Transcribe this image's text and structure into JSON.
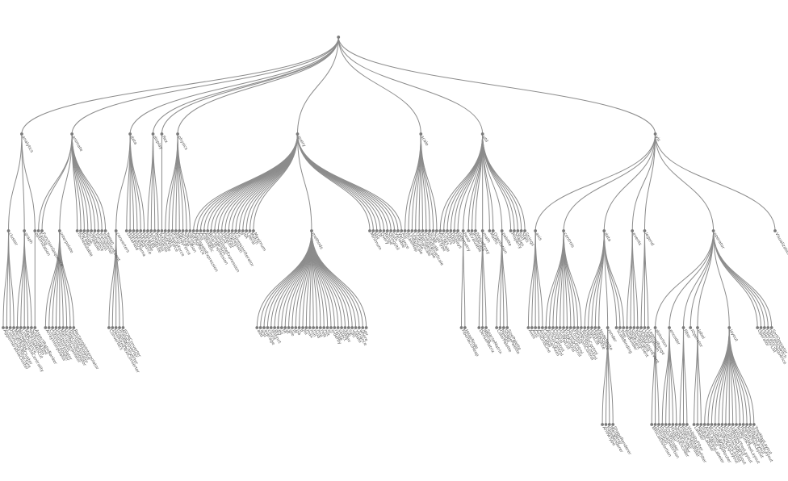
{
  "colors": {
    "link": "#8c8c8c",
    "node": "#7a7a7a",
    "text": "#555555"
  },
  "tree": {
    "name": "",
    "children": [
      {
        "name": "analytics",
        "children": [
          {
            "name": "cluster",
            "children": [
              {
                "name": "AgglomerativeCluster"
              },
              {
                "name": "CommunityStructure"
              },
              {
                "name": "HierarchicalCluster"
              },
              {
                "name": "MergeEdge"
              }
            ]
          },
          {
            "name": "graph",
            "children": [
              {
                "name": "BetweennessCentrality"
              },
              {
                "name": "LinkDistance"
              },
              {
                "name": "MaxFlowMinCut"
              },
              {
                "name": "ShortestPaths"
              },
              {
                "name": "SpanningTree"
              }
            ]
          },
          {
            "name": "optimization",
            "children": [
              {
                "name": "AspectRatioBanker"
              }
            ]
          }
        ]
      },
      {
        "name": "animate",
        "children": [
          {
            "name": "Easing"
          },
          {
            "name": "FunctionSequence"
          },
          {
            "name": "interpolate",
            "children": [
              {
                "name": "ArrayInterpolator"
              },
              {
                "name": "ColorInterpolator"
              },
              {
                "name": "DateInterpolator"
              },
              {
                "name": "Interpolator"
              },
              {
                "name": "MatrixInterpolator"
              },
              {
                "name": "NumberInterpolator"
              },
              {
                "name": "ObjectInterpolator"
              },
              {
                "name": "PointInterpolator"
              },
              {
                "name": "RectangleInterpolator"
              }
            ]
          },
          {
            "name": "ISchedulable"
          },
          {
            "name": "Parallel"
          },
          {
            "name": "Pause"
          },
          {
            "name": "Scheduler"
          },
          {
            "name": "Sequence"
          },
          {
            "name": "Transition"
          },
          {
            "name": "Transitioner"
          },
          {
            "name": "TransitionEvent"
          },
          {
            "name": "Tween"
          }
        ]
      },
      {
        "name": "data",
        "children": [
          {
            "name": "converters",
            "children": [
              {
                "name": "Converters"
              },
              {
                "name": "DelimitedTextConverter"
              },
              {
                "name": "GraphMLConverter"
              },
              {
                "name": "IDataConverter"
              },
              {
                "name": "JSONConverter"
              }
            ]
          },
          {
            "name": "DataField"
          },
          {
            "name": "DataSchema"
          },
          {
            "name": "DataSet"
          },
          {
            "name": "DataSource"
          },
          {
            "name": "DataTable"
          },
          {
            "name": "DataUtil"
          }
        ]
      },
      {
        "name": "display",
        "children": [
          {
            "name": "DirtySprite"
          },
          {
            "name": "LineSprite"
          },
          {
            "name": "RectSprite"
          },
          {
            "name": "TextSprite"
          }
        ]
      },
      {
        "name": "flex",
        "children": [
          {
            "name": "FlareVis"
          }
        ]
      },
      {
        "name": "physics",
        "children": [
          {
            "name": "DragForce"
          },
          {
            "name": "GravityForce"
          },
          {
            "name": "IForce"
          },
          {
            "name": "NBodyForce"
          },
          {
            "name": "Particle"
          },
          {
            "name": "Simulation"
          },
          {
            "name": "Spring"
          },
          {
            "name": "SpringForce"
          }
        ]
      },
      {
        "name": "query",
        "children": [
          {
            "name": "AggregateExpression"
          },
          {
            "name": "And"
          },
          {
            "name": "Arithmetic"
          },
          {
            "name": "Average"
          },
          {
            "name": "BinaryExpression"
          },
          {
            "name": "Comparison"
          },
          {
            "name": "CompositeExpression"
          },
          {
            "name": "Count"
          },
          {
            "name": "DateUtil"
          },
          {
            "name": "Distinct"
          },
          {
            "name": "Expression"
          },
          {
            "name": "ExpressionIterator"
          },
          {
            "name": "Fn"
          },
          {
            "name": "If"
          },
          {
            "name": "IsA"
          },
          {
            "name": "Literal"
          },
          {
            "name": "Match"
          },
          {
            "name": "Maximum"
          },
          {
            "name": "methods",
            "children": [
              {
                "name": "add"
              },
              {
                "name": "and"
              },
              {
                "name": "average"
              },
              {
                "name": "count"
              },
              {
                "name": "distinct"
              },
              {
                "name": "div"
              },
              {
                "name": "eq"
              },
              {
                "name": "fn"
              },
              {
                "name": "gt"
              },
              {
                "name": "gte"
              },
              {
                "name": "iff"
              },
              {
                "name": "isa"
              },
              {
                "name": "lt"
              },
              {
                "name": "lte"
              },
              {
                "name": "max"
              },
              {
                "name": "min"
              },
              {
                "name": "mod"
              },
              {
                "name": "mul"
              },
              {
                "name": "neq"
              },
              {
                "name": "not"
              },
              {
                "name": "or"
              },
              {
                "name": "orderby"
              },
              {
                "name": "range"
              },
              {
                "name": "select"
              },
              {
                "name": "stddev"
              },
              {
                "name": "sub"
              },
              {
                "name": "sum"
              },
              {
                "name": "update"
              },
              {
                "name": "variance"
              },
              {
                "name": "where"
              },
              {
                "name": "xor"
              },
              {
                "name": "_"
              }
            ]
          },
          {
            "name": "Minimum"
          },
          {
            "name": "Not"
          },
          {
            "name": "Or"
          },
          {
            "name": "Query"
          },
          {
            "name": "Range"
          },
          {
            "name": "StringUtil"
          },
          {
            "name": "Sum"
          },
          {
            "name": "Variable"
          },
          {
            "name": "Variance"
          },
          {
            "name": "Xor"
          }
        ]
      },
      {
        "name": "scale",
        "children": [
          {
            "name": "IScaleMap"
          },
          {
            "name": "LinearScale"
          },
          {
            "name": "LogScale"
          },
          {
            "name": "OrdinalScale"
          },
          {
            "name": "QuantileScale"
          },
          {
            "name": "QuantitativeScale"
          },
          {
            "name": "RootScale"
          },
          {
            "name": "Scale"
          },
          {
            "name": "ScaleType"
          },
          {
            "name": "TimeScale"
          }
        ]
      },
      {
        "name": "util",
        "children": [
          {
            "name": "Arrays"
          },
          {
            "name": "Colors"
          },
          {
            "name": "Dates"
          },
          {
            "name": "Displays"
          },
          {
            "name": "Filter"
          },
          {
            "name": "Geometry"
          },
          {
            "name": "heap",
            "children": [
              {
                "name": "FibonacciHeap"
              },
              {
                "name": "HeapNode"
              }
            ]
          },
          {
            "name": "IEvaluable"
          },
          {
            "name": "IPredicate"
          },
          {
            "name": "IValueProxy"
          },
          {
            "name": "math",
            "children": [
              {
                "name": "DenseMatrix"
              },
              {
                "name": "IMatrix"
              },
              {
                "name": "SparseMatrix"
              }
            ]
          },
          {
            "name": "Maths"
          },
          {
            "name": "Orientation"
          },
          {
            "name": "palette",
            "children": [
              {
                "name": "ColorPalette"
              },
              {
                "name": "Palette"
              },
              {
                "name": "ShapePalette"
              },
              {
                "name": "SizePalette"
              }
            ]
          },
          {
            "name": "Property"
          },
          {
            "name": "Shapes"
          },
          {
            "name": "Sort"
          },
          {
            "name": "Stats"
          },
          {
            "name": "Strings"
          }
        ]
      },
      {
        "name": "vis",
        "children": [
          {
            "name": "axis",
            "children": [
              {
                "name": "Axes"
              },
              {
                "name": "Axis"
              },
              {
                "name": "AxisGridLine"
              },
              {
                "name": "AxisLabel"
              },
              {
                "name": "CartesianAxes"
              }
            ]
          },
          {
            "name": "controls",
            "children": [
              {
                "name": "AnchorControl"
              },
              {
                "name": "ClickControl"
              },
              {
                "name": "Control"
              },
              {
                "name": "ControlList"
              },
              {
                "name": "DragControl"
              },
              {
                "name": "ExpandControl"
              },
              {
                "name": "HoverControl"
              },
              {
                "name": "IControl"
              },
              {
                "name": "PanZoomControl"
              },
              {
                "name": "SelectionControl"
              },
              {
                "name": "TooltipControl"
              }
            ]
          },
          {
            "name": "data",
            "children": [
              {
                "name": "Data"
              },
              {
                "name": "DataList"
              },
              {
                "name": "DataSprite"
              },
              {
                "name": "EdgeSprite"
              },
              {
                "name": "NodeSprite"
              },
              {
                "name": "render",
                "children": [
                  {
                    "name": "ArrowType"
                  },
                  {
                    "name": "EdgeRenderer"
                  },
                  {
                    "name": "IRenderer"
                  },
                  {
                    "name": "ShapeRenderer"
                  }
                ]
              },
              {
                "name": "ScaleBinding"
              },
              {
                "name": "Tree"
              },
              {
                "name": "TreeBuilder"
              }
            ]
          },
          {
            "name": "events",
            "children": [
              {
                "name": "DataEvent"
              },
              {
                "name": "SelectionEvent"
              },
              {
                "name": "TooltipEvent"
              },
              {
                "name": "VisualizationEvent"
              }
            ]
          },
          {
            "name": "legend",
            "children": [
              {
                "name": "Legend"
              },
              {
                "name": "LegendItem"
              },
              {
                "name": "LegendRange"
              }
            ]
          },
          {
            "name": "operator",
            "children": [
              {
                "name": "distortion",
                "children": [
                  {
                    "name": "BifocalDistortion"
                  },
                  {
                    "name": "Distortion"
                  },
                  {
                    "name": "FisheyeDistortion"
                  }
                ]
              },
              {
                "name": "encoder",
                "children": [
                  {
                    "name": "ColorEncoder"
                  },
                  {
                    "name": "Encoder"
                  },
                  {
                    "name": "PropertyEncoder"
                  },
                  {
                    "name": "ShapeEncoder"
                  },
                  {
                    "name": "SizeEncoder"
                  }
                ]
              },
              {
                "name": "filter",
                "children": [
                  {
                    "name": "FisheyeTreeFilter"
                  },
                  {
                    "name": "GraphDistanceFilter"
                  },
                  {
                    "name": "VisibilityFilter"
                  }
                ]
              },
              {
                "name": "IOperator"
              },
              {
                "name": "label",
                "children": [
                  {
                    "name": "Labeler"
                  },
                  {
                    "name": "RadialLabeler"
                  },
                  {
                    "name": "StackedAreaLabeler"
                  }
                ]
              },
              {
                "name": "layout",
                "children": [
                  {
                    "name": "AxisLayout"
                  },
                  {
                    "name": "BundledEdgeRouter"
                  },
                  {
                    "name": "CircleLayout"
                  },
                  {
                    "name": "CirclePackingLayout"
                  },
                  {
                    "name": "DendrogramLayout"
                  },
                  {
                    "name": "ForceDirectedLayout"
                  },
                  {
                    "name": "IcicleTreeLayout"
                  },
                  {
                    "name": "IndentedTreeLayout"
                  },
                  {
                    "name": "Layout"
                  },
                  {
                    "name": "NodeLinkTreeLayout"
                  },
                  {
                    "name": "PieLayout"
                  },
                  {
                    "name": "RadialTreeLayout"
                  },
                  {
                    "name": "RandomLayout"
                  },
                  {
                    "name": "StackedAreaLayout"
                  },
                  {
                    "name": "TreeMapLayout"
                  }
                ]
              },
              {
                "name": "Operator"
              },
              {
                "name": "OperatorList"
              },
              {
                "name": "OperatorSequence"
              },
              {
                "name": "OperatorSwitch"
              },
              {
                "name": "SortOperator"
              }
            ]
          },
          {
            "name": "Visualization"
          }
        ]
      }
    ]
  }
}
